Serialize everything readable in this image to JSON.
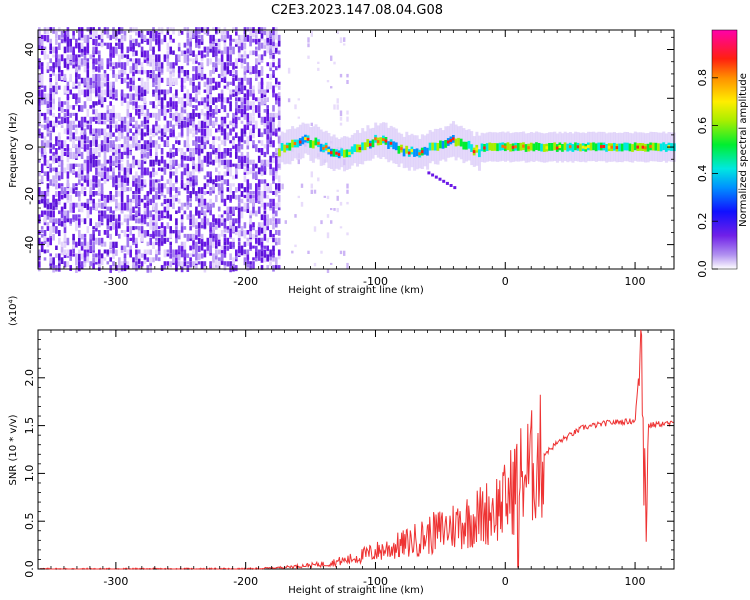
{
  "title": "C2E3.2023.147.08.04.G08",
  "chart_data": [
    {
      "type": "heatmap",
      "xlabel": "Height of straight line (km)",
      "ylabel": "Frequency (Hz)",
      "xlim": [
        -360,
        130
      ],
      "ylim": [
        -50,
        48
      ],
      "xticks": [
        -300,
        -200,
        -100,
        0,
        100
      ],
      "yticks": [
        -40,
        -20,
        0,
        20,
        40
      ],
      "colorbar": {
        "label": "Normalized spectral amplitude",
        "range": [
          0.0,
          1.0
        ],
        "ticks": [
          "0.0",
          "0.2",
          "0.4",
          "0.6",
          "0.8"
        ],
        "colormap": "rainbow (white→purple→blue→cyan→green→yellow→orange→red→magenta)"
      },
      "features": {
        "noise_region_x": [
          -360,
          -175
        ],
        "sparse_noise_region_x": [
          -175,
          -120
        ],
        "signal_band_start_x": -175,
        "signal_band_center_frequency": 0,
        "signal_band_halfwidth": 4,
        "minor_branch": {
          "x": [
            -60,
            -40
          ],
          "frequency": [
            -10,
            -16
          ]
        }
      }
    },
    {
      "type": "line",
      "xlabel": "Height of straight line (km)",
      "ylabel": "SNR (10 * v/v)",
      "y_multiplier": "(x10⁴)",
      "xlim": [
        -360,
        130
      ],
      "ylim": [
        0,
        2.5
      ],
      "xticks": [
        -300,
        -200,
        -100,
        0,
        100
      ],
      "yticks": [
        "0.0",
        "0.5",
        "1.0",
        "1.5",
        "2.0"
      ],
      "series": [
        {
          "color": "#ee3333",
          "x": [
            -360,
            -300,
            -200,
            -180,
            -140,
            -120,
            -100,
            -80,
            -60,
            -40,
            -20,
            0,
            10,
            20,
            30,
            40,
            60,
            80,
            100,
            105,
            108,
            110,
            120,
            130
          ],
          "y": [
            0.0,
            0.0,
            0.0,
            0.01,
            0.05,
            0.1,
            0.18,
            0.25,
            0.35,
            0.45,
            0.55,
            0.7,
            0.95,
            1.05,
            1.2,
            1.32,
            1.48,
            1.53,
            1.55,
            2.4,
            0.6,
            1.5,
            1.52,
            1.52
          ]
        }
      ]
    }
  ]
}
